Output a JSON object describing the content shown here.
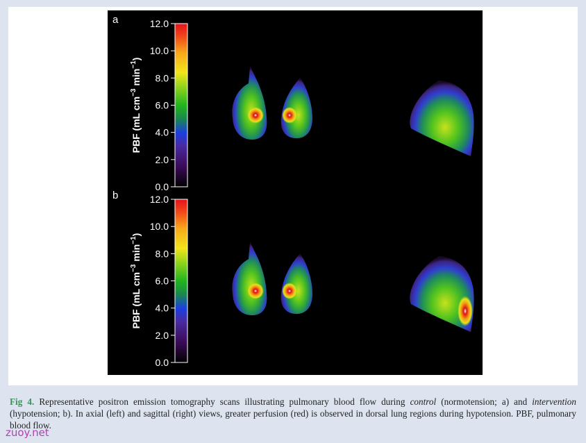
{
  "figure": {
    "panels": [
      {
        "label": "a",
        "colorbar": {
          "ticks": [
            "12.0",
            "10.0",
            "8.0",
            "6.0",
            "4.0",
            "2.0",
            "0.0"
          ],
          "label": {
            "base": "PBF (mL cm",
            "exp1": "−3",
            "mid": " min",
            "exp2": "−1",
            "end": ")"
          }
        }
      },
      {
        "label": "b",
        "colorbar": {
          "ticks": [
            "12.0",
            "10.0",
            "8.0",
            "6.0",
            "4.0",
            "2.0",
            "0.0"
          ],
          "label": {
            "base": "PBF (mL cm",
            "exp1": "−3",
            "mid": " min",
            "exp2": "−1",
            "end": ")"
          }
        }
      }
    ]
  },
  "caption": {
    "lead": "Fig 4.",
    "parts": [
      " Representative positron emission tomography scans illustrating pulmonary blood flow during ",
      "control",
      " (normotension; a) and ",
      "intervention",
      " (hypotension; b). In axial (left) and sagittal (right) views, greater perfusion (red) is observed in dorsal lung regions during hypotension. PBF, pulmonary blood flow."
    ]
  },
  "watermark": "zuoy.net"
}
